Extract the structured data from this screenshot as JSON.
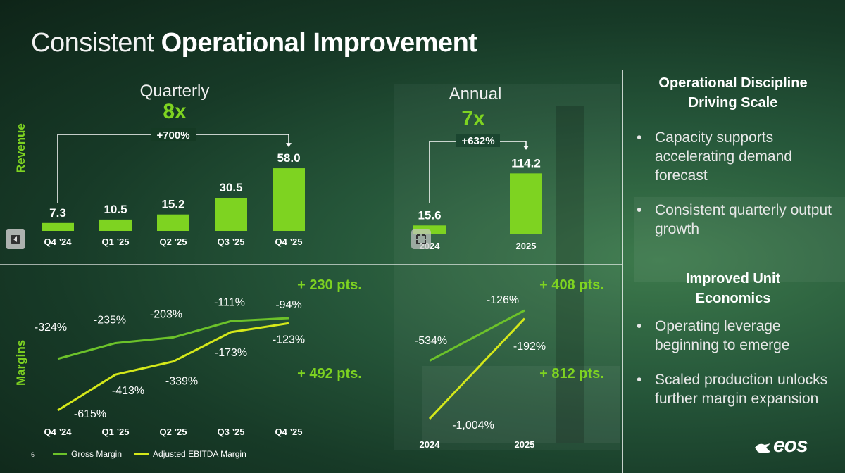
{
  "slide": {
    "title_light": "Consistent",
    "title_bold": "Operational Improvement",
    "page_number": "6",
    "logo_text": "eos"
  },
  "labels": {
    "revenue": "Revenue",
    "margins": "Margins"
  },
  "colors": {
    "accent": "#7ed321",
    "ebitda": "#d4e81a",
    "gross": "#6cc22a"
  },
  "quarterly": {
    "heading": "Quarterly",
    "multiple": "8x",
    "growth_label": "+700%"
  },
  "annual": {
    "heading": "Annual",
    "multiple": "7x",
    "growth_label": "+632%"
  },
  "right_panel": {
    "section1_title_line1": "Operational Discipline",
    "section1_title_line2": "Driving Scale",
    "section1_bullets": [
      "Capacity supports accelerating demand forecast",
      "Consistent quarterly output growth"
    ],
    "section2_title_line1": "Improved Unit",
    "section2_title_line2": "Economics",
    "section2_bullets": [
      "Operating leverage beginning to emerge",
      "Scaled production unlocks further margin expansion"
    ]
  },
  "legend": {
    "gross": "Gross Margin",
    "ebitda": "Adjusted EBITDA Margin"
  },
  "chart_data": [
    {
      "type": "bar",
      "title": "Quarterly",
      "ylabel": "Revenue",
      "categories": [
        "Q4 ’24",
        "Q1 ’25",
        "Q2 ’25",
        "Q3 ’25",
        "Q4 ’25"
      ],
      "values": [
        7.3,
        10.5,
        15.2,
        30.5,
        58.0
      ],
      "value_labels": [
        "7.3",
        "10.5",
        "15.2",
        "30.5",
        "58.0"
      ],
      "annotation": "+700%",
      "ylim": [
        0,
        60
      ]
    },
    {
      "type": "bar",
      "title": "Annual",
      "ylabel": "Revenue",
      "categories": [
        "2024",
        "2025"
      ],
      "values": [
        15.6,
        114.2
      ],
      "value_labels": [
        "15.6",
        "114.2"
      ],
      "annotation": "+632%",
      "ylim": [
        0,
        120
      ]
    },
    {
      "type": "line",
      "title": "Quarterly Margins",
      "ylabel": "Margins",
      "categories": [
        "Q4 ’24",
        "Q1 ’25",
        "Q2 ’25",
        "Q3 ’25",
        "Q4 ’25"
      ],
      "series": [
        {
          "name": "Gross Margin",
          "values": [
            -324,
            -235,
            -203,
            -111,
            -94
          ],
          "labels": [
            "-324%",
            "-235%",
            "-203%",
            "-111%",
            "-94%"
          ],
          "change": "+ 230 pts."
        },
        {
          "name": "Adjusted EBITDA Margin",
          "values": [
            -615,
            -413,
            -339,
            -173,
            -123
          ],
          "labels": [
            "-615%",
            "-413%",
            "-339%",
            "-173%",
            "-123%"
          ],
          "change": "+ 492 pts."
        }
      ]
    },
    {
      "type": "line",
      "title": "Annual Margins",
      "ylabel": "Margins",
      "categories": [
        "2024",
        "2025"
      ],
      "series": [
        {
          "name": "Gross Margin",
          "values": [
            -534,
            -126
          ],
          "labels": [
            "-534%",
            "-126%"
          ],
          "change": "+ 408 pts."
        },
        {
          "name": "Adjusted EBITDA Margin",
          "values": [
            -1004,
            -192
          ],
          "labels": [
            "-1,004%",
            "-192%"
          ],
          "change": "+ 812 pts."
        }
      ]
    }
  ]
}
